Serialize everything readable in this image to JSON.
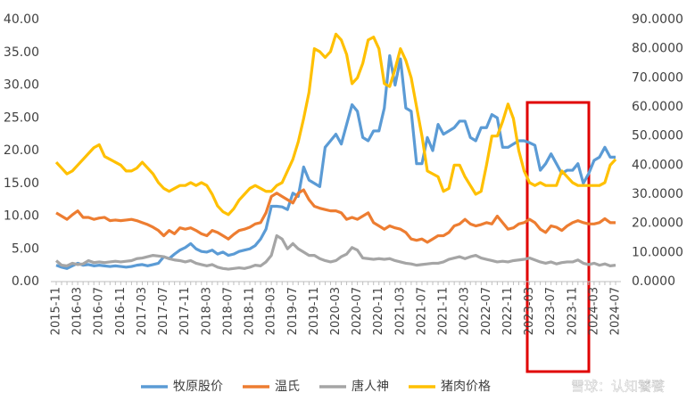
{
  "chart_data": {
    "type": "line",
    "categories": [
      "2015-11",
      null,
      null,
      null,
      "2016-03",
      null,
      null,
      null,
      "2016-07",
      null,
      null,
      null,
      "2016-11",
      null,
      null,
      null,
      "2017-03",
      null,
      null,
      null,
      "2017-07",
      null,
      null,
      null,
      "2017-11",
      null,
      null,
      null,
      "2018-03",
      null,
      null,
      null,
      "2018-07",
      null,
      null,
      null,
      "2018-11",
      null,
      null,
      null,
      "2019-03",
      null,
      null,
      null,
      "2019-07",
      null,
      null,
      null,
      "2019-11",
      null,
      null,
      null,
      "2020-03",
      null,
      null,
      null,
      "2020-07",
      null,
      null,
      null,
      "2020-11",
      null,
      null,
      null,
      "2021-03",
      null,
      null,
      null,
      "2021-07",
      null,
      null,
      null,
      "2021-11",
      null,
      null,
      null,
      "2022-03",
      null,
      null,
      null,
      "2022-07",
      null,
      null,
      null,
      "2022-11",
      null,
      null,
      null,
      "2023-03",
      null,
      null,
      null,
      "2023-07",
      null,
      null,
      null,
      "2023-11",
      null,
      null,
      null,
      "2024-03",
      null,
      null,
      null,
      "2024-07"
    ],
    "series": [
      {
        "name": "牧原股价",
        "color": "#5b9bd5",
        "values": [
          2.5,
          2.2,
          2.0,
          2.4,
          2.8,
          2.5,
          2.6,
          2.4,
          2.5,
          2.4,
          2.3,
          2.4,
          2.3,
          2.2,
          2.3,
          2.5,
          2.6,
          2.4,
          2.6,
          2.8,
          3.8,
          3.5,
          4.2,
          4.8,
          5.2,
          5.8,
          5.0,
          4.6,
          4.5,
          4.8,
          4.2,
          4.5,
          4.0,
          4.2,
          4.6,
          4.8,
          5.0,
          5.5,
          6.5,
          8.0,
          11.5,
          11.5,
          11.4,
          11.0,
          13.5,
          13.0,
          17.5,
          15.5,
          15.0,
          14.5,
          20.5,
          21.5,
          22.5,
          21.0,
          24.0,
          27.0,
          26.0,
          22.0,
          21.5,
          23.0,
          23.0,
          26.5,
          34.5,
          30.0,
          34.0,
          26.5,
          26.0,
          18.0,
          18.0,
          22.0,
          20.0,
          24.0,
          22.5,
          23.0,
          23.5,
          24.5,
          24.5,
          22.0,
          21.5,
          23.5,
          23.5,
          25.5,
          25.0,
          20.5,
          20.5,
          21.0,
          21.5,
          21.5,
          21.2,
          20.8,
          17.0,
          18.0,
          19.5,
          18.0,
          16.5,
          17.0,
          17.0,
          18.0,
          15.0,
          16.5,
          18.5,
          19.0,
          20.5,
          19.0,
          19.0
        ]
      },
      {
        "name": "温氏",
        "color": "#ed7d31",
        "values": [
          10.5,
          10.0,
          9.5,
          10.2,
          10.8,
          9.8,
          9.8,
          9.5,
          9.7,
          9.8,
          9.3,
          9.4,
          9.3,
          9.4,
          9.5,
          9.3,
          9.0,
          8.7,
          8.3,
          7.8,
          7.0,
          7.8,
          7.3,
          8.2,
          8.0,
          8.2,
          7.8,
          7.3,
          7.0,
          7.8,
          7.5,
          7.0,
          6.5,
          7.2,
          7.8,
          8.0,
          8.3,
          8.8,
          9.0,
          10.5,
          13.0,
          13.5,
          13.0,
          12.5,
          12.0,
          13.5,
          14.0,
          12.5,
          11.5,
          11.2,
          11.0,
          10.8,
          10.8,
          10.5,
          9.5,
          9.8,
          9.5,
          10.0,
          10.5,
          9.0,
          8.5,
          8.0,
          8.5,
          8.2,
          8.0,
          7.5,
          6.5,
          6.3,
          6.5,
          6.0,
          6.5,
          7.0,
          7.0,
          7.5,
          8.5,
          8.8,
          9.5,
          8.8,
          8.5,
          8.7,
          9.0,
          8.8,
          10.0,
          9.0,
          8.0,
          8.2,
          8.8,
          9.0,
          9.5,
          9.0,
          8.0,
          7.5,
          8.5,
          8.3,
          7.8,
          8.5,
          9.0,
          9.3,
          9.0,
          8.8,
          8.8,
          9.0,
          9.6,
          9.0,
          9.0
        ]
      },
      {
        "name": "唐人神",
        "color": "#a5a5a5",
        "values": [
          3.2,
          2.5,
          2.4,
          2.8,
          2.6,
          2.7,
          3.2,
          2.9,
          3.0,
          2.9,
          3.0,
          3.1,
          3.0,
          3.1,
          3.2,
          3.5,
          3.6,
          3.8,
          4.0,
          3.9,
          3.8,
          3.5,
          3.3,
          3.2,
          3.0,
          3.2,
          2.8,
          2.6,
          2.4,
          2.6,
          2.2,
          2.0,
          1.9,
          2.0,
          2.1,
          2.0,
          2.2,
          2.5,
          2.4,
          3.0,
          4.0,
          7.0,
          6.5,
          5.0,
          5.8,
          5.0,
          4.5,
          4.0,
          4.0,
          3.5,
          3.2,
          3.0,
          3.2,
          3.8,
          4.2,
          5.2,
          4.8,
          3.6,
          3.5,
          3.4,
          3.5,
          3.4,
          3.5,
          3.2,
          3.0,
          2.8,
          2.7,
          2.5,
          2.6,
          2.7,
          2.8,
          2.8,
          3.0,
          3.4,
          3.6,
          3.8,
          3.5,
          3.8,
          4.0,
          3.6,
          3.4,
          3.2,
          3.0,
          3.1,
          3.0,
          3.2,
          3.3,
          3.4,
          3.6,
          3.3,
          3.0,
          2.8,
          3.0,
          2.7,
          2.9,
          3.0,
          3.0,
          3.3,
          2.8,
          2.6,
          2.8,
          2.5,
          2.7,
          2.4,
          2.5
        ]
      },
      {
        "name": "猪肉价格",
        "color": "#ffc000",
        "axis": "y2",
        "values": [
          41,
          39,
          37,
          38,
          40,
          42,
          44,
          46,
          47,
          43,
          42,
          41,
          40,
          38,
          38,
          39,
          41,
          39,
          37,
          34,
          32,
          31,
          32,
          33,
          33,
          34,
          33,
          34,
          33,
          30,
          26,
          24,
          23,
          25,
          28,
          30,
          32,
          33,
          32,
          31,
          31,
          33,
          34,
          38,
          42,
          48,
          56,
          65,
          80,
          79,
          77,
          79,
          85,
          83,
          78,
          68,
          70,
          75,
          83,
          84,
          80,
          68,
          67,
          73,
          80,
          76,
          70,
          60,
          50,
          38,
          37,
          36,
          31,
          32,
          40,
          40,
          36,
          33,
          30,
          31,
          40,
          50,
          50,
          55,
          61,
          56,
          45,
          38,
          34,
          33,
          34,
          33,
          33,
          33,
          38,
          36,
          34,
          33,
          33,
          33,
          33,
          33,
          34,
          40,
          42
        ]
      }
    ],
    "ylim": [
      0,
      40
    ],
    "yticks": [
      {
        "value": 0,
        "label": "0.00"
      },
      {
        "value": 5,
        "label": "5.00"
      },
      {
        "value": 10,
        "label": "10.00"
      },
      {
        "value": 15,
        "label": "15.00"
      },
      {
        "value": 20,
        "label": "20.00"
      },
      {
        "value": 25,
        "label": "25.00"
      },
      {
        "value": 30,
        "label": "30.00"
      },
      {
        "value": 35,
        "label": "35.00"
      },
      {
        "value": 40,
        "label": "40.00"
      }
    ],
    "y2lim": [
      0,
      90
    ],
    "y2ticks": [
      {
        "value": 0,
        "label": "0.0000"
      },
      {
        "value": 10,
        "label": "10.0000"
      },
      {
        "value": 20,
        "label": "20.0000"
      },
      {
        "value": 30,
        "label": "30.0000"
      },
      {
        "value": 40,
        "label": "40.0000"
      },
      {
        "value": 50,
        "label": "50.0000"
      },
      {
        "value": 60,
        "label": "60.0000"
      },
      {
        "value": 70,
        "label": "70.0000"
      },
      {
        "value": 80,
        "label": "80.0000"
      },
      {
        "value": 90,
        "label": "90.0000"
      }
    ],
    "grid": false,
    "legend": "bottom",
    "watermark": "雪球：认知饕餮"
  }
}
